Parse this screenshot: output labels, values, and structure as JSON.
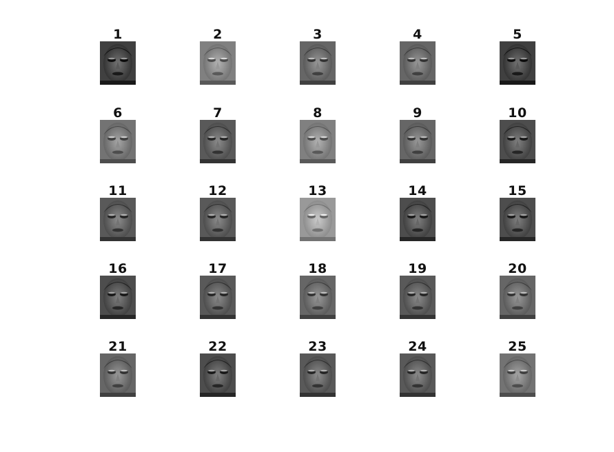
{
  "grid": {
    "rows": 5,
    "cols": 5
  },
  "panels": [
    {
      "title": "1",
      "tone": 0.3
    },
    {
      "title": "2",
      "tone": 0.55
    },
    {
      "title": "3",
      "tone": 0.45
    },
    {
      "title": "4",
      "tone": 0.45
    },
    {
      "title": "5",
      "tone": 0.3
    },
    {
      "title": "6",
      "tone": 0.5
    },
    {
      "title": "7",
      "tone": 0.4
    },
    {
      "title": "8",
      "tone": 0.55
    },
    {
      "title": "9",
      "tone": 0.45
    },
    {
      "title": "10",
      "tone": 0.35
    },
    {
      "title": "11",
      "tone": 0.4
    },
    {
      "title": "12",
      "tone": 0.4
    },
    {
      "title": "13",
      "tone": 0.65
    },
    {
      "title": "14",
      "tone": 0.35
    },
    {
      "title": "15",
      "tone": 0.35
    },
    {
      "title": "16",
      "tone": 0.35
    },
    {
      "title": "17",
      "tone": 0.4
    },
    {
      "title": "18",
      "tone": 0.45
    },
    {
      "title": "19",
      "tone": 0.4
    },
    {
      "title": "20",
      "tone": 0.45
    },
    {
      "title": "21",
      "tone": 0.45
    },
    {
      "title": "22",
      "tone": 0.35
    },
    {
      "title": "23",
      "tone": 0.4
    },
    {
      "title": "24",
      "tone": 0.4
    },
    {
      "title": "25",
      "tone": 0.5
    }
  ]
}
